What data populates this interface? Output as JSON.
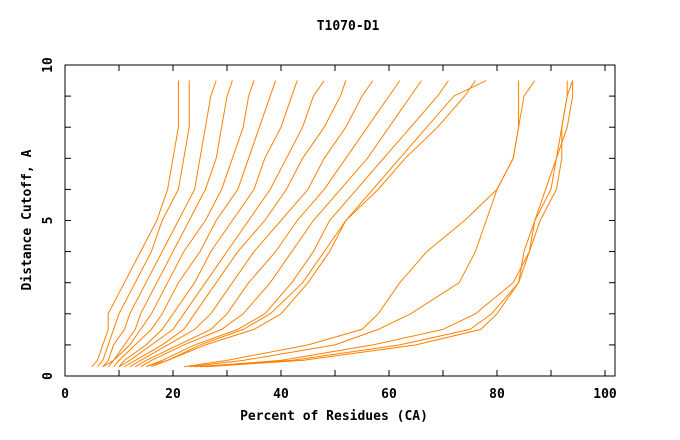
{
  "chart_data": {
    "type": "line",
    "title": "T1070-D1",
    "xlabel": "Percent of Residues (CA)",
    "ylabel": "Distance Cutoff, A",
    "xlim": [
      0,
      102
    ],
    "ylim": [
      0,
      10
    ],
    "xticks": [
      0,
      20,
      40,
      60,
      80,
      100
    ],
    "yticks": [
      0,
      5,
      10
    ],
    "grid": false,
    "legend": "none",
    "line_color": "#ff8000",
    "y": [
      0.3,
      0.5,
      1,
      1.5,
      2,
      3,
      4,
      5,
      6,
      7,
      8,
      9,
      9.5
    ],
    "series": [
      {
        "x": [
          5,
          6,
          7,
          8,
          8,
          11,
          14,
          17,
          19,
          20,
          21,
          21,
          21
        ]
      },
      {
        "x": [
          6,
          7,
          8,
          9,
          10,
          13,
          16,
          18,
          21,
          22,
          23,
          23,
          23
        ]
      },
      {
        "x": [
          7,
          8,
          9,
          11,
          12,
          15,
          18,
          21,
          24,
          25,
          26,
          27,
          28
        ]
      },
      {
        "x": [
          7,
          9,
          11,
          13,
          14,
          17,
          20,
          23,
          26,
          28,
          29,
          30,
          31
        ]
      },
      {
        "x": [
          8,
          9,
          12,
          14,
          16,
          19,
          22,
          26,
          29,
          31,
          33,
          34,
          35
        ]
      },
      {
        "x": [
          9,
          10,
          13,
          16,
          18,
          21,
          25,
          28,
          32,
          34,
          36,
          38,
          39
        ]
      },
      {
        "x": [
          10,
          11,
          15,
          18,
          20,
          24,
          27,
          31,
          35,
          37,
          40,
          42,
          43
        ]
      },
      {
        "x": [
          10,
          12,
          16,
          20,
          22,
          26,
          30,
          34,
          38,
          41,
          44,
          46,
          48
        ]
      },
      {
        "x": [
          11,
          13,
          18,
          22,
          24,
          28,
          32,
          37,
          41,
          44,
          48,
          51,
          52
        ]
      },
      {
        "x": [
          12,
          14,
          19,
          24,
          27,
          31,
          35,
          40,
          45,
          48,
          52,
          55,
          57
        ]
      },
      {
        "x": [
          13,
          15,
          21,
          27,
          30,
          34,
          39,
          43,
          48,
          52,
          56,
          60,
          62
        ]
      },
      {
        "x": [
          14,
          16,
          22,
          29,
          33,
          38,
          42,
          46,
          51,
          56,
          60,
          64,
          66
        ]
      },
      {
        "x": [
          15,
          18,
          24,
          32,
          37,
          42,
          46,
          49,
          54,
          59,
          64,
          69,
          71
        ]
      },
      {
        "x": [
          16,
          19,
          26,
          35,
          40,
          45,
          49,
          52,
          58,
          63,
          69,
          74,
          76
        ]
      },
      {
        "x": [
          15,
          19,
          25,
          33,
          38,
          44,
          48,
          52,
          57,
          62,
          67,
          72,
          78
        ]
      },
      {
        "x": [
          22,
          30,
          45,
          55,
          58,
          62,
          67,
          74,
          80,
          83,
          84,
          85,
          87
        ]
      },
      {
        "x": [
          23,
          33,
          50,
          58,
          64,
          73,
          76,
          78,
          80,
          83,
          84,
          84,
          84
        ]
      },
      {
        "x": [
          25,
          40,
          57,
          70,
          76,
          83,
          86,
          88,
          91,
          92,
          92,
          93,
          93
        ]
      },
      {
        "x": [
          24,
          42,
          62,
          75,
          79,
          84,
          86,
          87,
          90,
          91,
          92,
          93,
          94
        ]
      },
      {
        "x": [
          26,
          44,
          65,
          77,
          80,
          84,
          85,
          87,
          89,
          91,
          93,
          94,
          94
        ]
      }
    ]
  }
}
